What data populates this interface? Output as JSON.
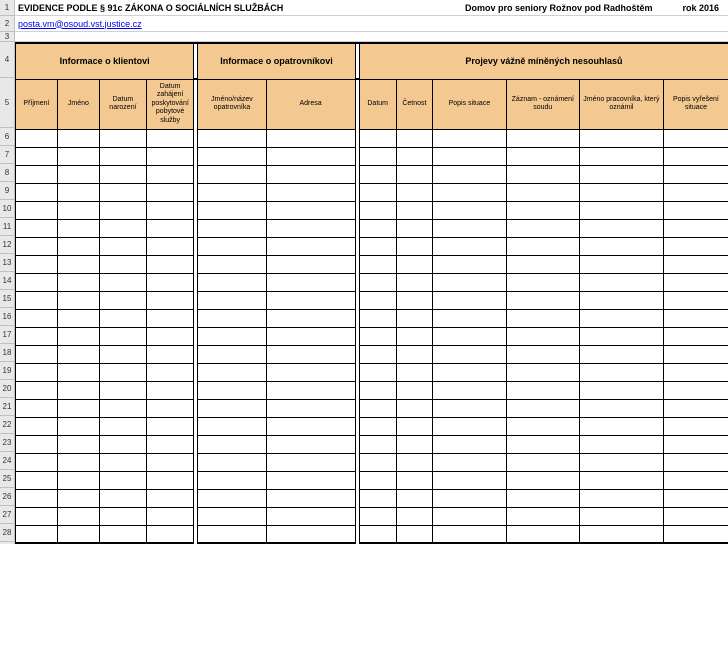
{
  "header": {
    "title": "EVIDENCE PODLE § 91c ZÁKONA O SOCIÁLNÍCH SLUŽBÁCH",
    "organization": "Domov pro seniory Rožnov pod Radhoštěm",
    "year": "rok 2016",
    "email": "posta.vm@osoud.vst.justice.cz"
  },
  "groups": [
    {
      "label": "Informace o klientovi"
    },
    {
      "label": "Informace o opatrovníkovi"
    },
    {
      "label": "Projevy vážně míněných nesouhlasů"
    }
  ],
  "columns": [
    {
      "label": "Příjmení"
    },
    {
      "label": "Jméno"
    },
    {
      "label": "Datum narození"
    },
    {
      "label": "Datum zahájení poskytování pobytové služby"
    },
    {
      "label": "Jméno/název opatrovníka"
    },
    {
      "label": "Adresa"
    },
    {
      "label": "Datum"
    },
    {
      "label": "Četnost"
    },
    {
      "label": "Popis situace"
    },
    {
      "label": "Záznam - oznámení soudu"
    },
    {
      "label": "Jméno pracovníka, který oznámil"
    },
    {
      "label": "Popis vyřešení situace"
    }
  ],
  "row_numbers": [
    "1",
    "2",
    "3",
    "4",
    "5",
    "6",
    "7",
    "8",
    "9",
    "10",
    "11",
    "12",
    "13",
    "14",
    "15",
    "16",
    "17",
    "18",
    "19",
    "20",
    "21",
    "22",
    "23",
    "24",
    "25",
    "26",
    "27",
    "28"
  ],
  "data_row_count": 23,
  "colors": {
    "header_bg": "#f4c891",
    "row_header_bg": "#e8e8e8",
    "link": "#0000ee"
  }
}
